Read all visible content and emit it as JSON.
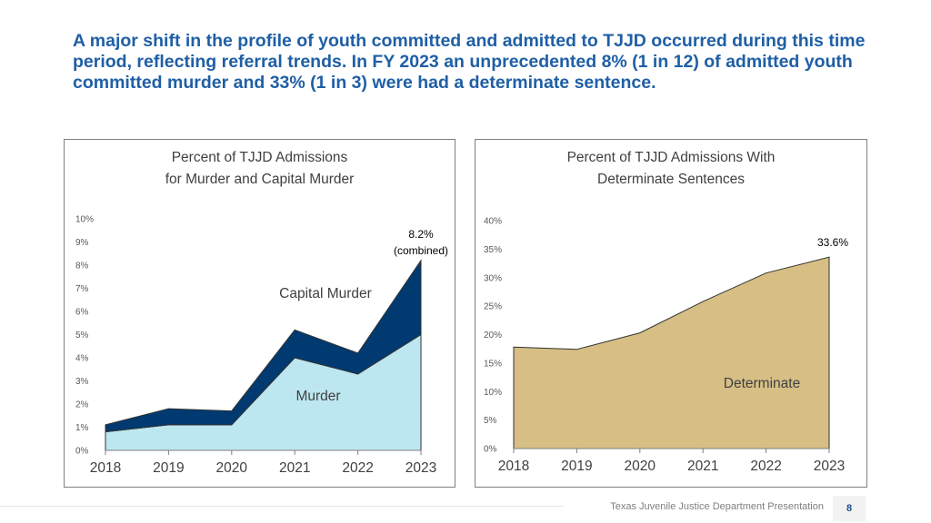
{
  "headline": "A major shift in the profile of youth committed and admitted to TJJD occurred during this time period, reflecting referral trends. In FY 2023 an unprecedented 8% (1 in 12) of admitted youth committed murder and 33% (1 in 3) were had a determinate sentence.",
  "footer": {
    "org_text": "Texas Juvenile Justice Department Presentation",
    "page_number": "8"
  },
  "colors": {
    "headline": "#1f5fa6",
    "murder": "#bde7f0",
    "capital_murder": "#003a70",
    "determinate": "#d6be85"
  },
  "chart_data": [
    {
      "type": "area",
      "stacked": true,
      "title_lines": [
        "Percent of TJJD Admissions",
        "for Murder and Capital Murder"
      ],
      "x": [
        "2018",
        "2019",
        "2020",
        "2021",
        "2022",
        "2023"
      ],
      "yticks": [
        "0%",
        "1%",
        "2%",
        "3%",
        "4%",
        "5%",
        "6%",
        "7%",
        "8%",
        "9%",
        "10%"
      ],
      "ylim": [
        0,
        10
      ],
      "series": [
        {
          "name": "Murder",
          "values": [
            0.8,
            1.1,
            1.1,
            4.0,
            3.3,
            5.0
          ]
        },
        {
          "name": "Capital Murder",
          "values": [
            0.3,
            0.7,
            0.6,
            1.2,
            0.9,
            3.2
          ]
        }
      ],
      "annotations": {
        "value_label": "8.2%",
        "value_label_note": "(combined)"
      }
    },
    {
      "type": "area",
      "title_lines": [
        "Percent of TJJD Admissions With",
        "Determinate Sentences"
      ],
      "x": [
        "2018",
        "2019",
        "2020",
        "2021",
        "2022",
        "2023"
      ],
      "yticks": [
        "0%",
        "5%",
        "10%",
        "15%",
        "20%",
        "25%",
        "30%",
        "35%",
        "40%"
      ],
      "ylim": [
        0,
        40
      ],
      "series": [
        {
          "name": "Determinate",
          "values": [
            17.8,
            17.4,
            20.3,
            25.8,
            30.8,
            33.6
          ]
        }
      ],
      "annotations": {
        "value_label": "33.6%"
      }
    }
  ]
}
